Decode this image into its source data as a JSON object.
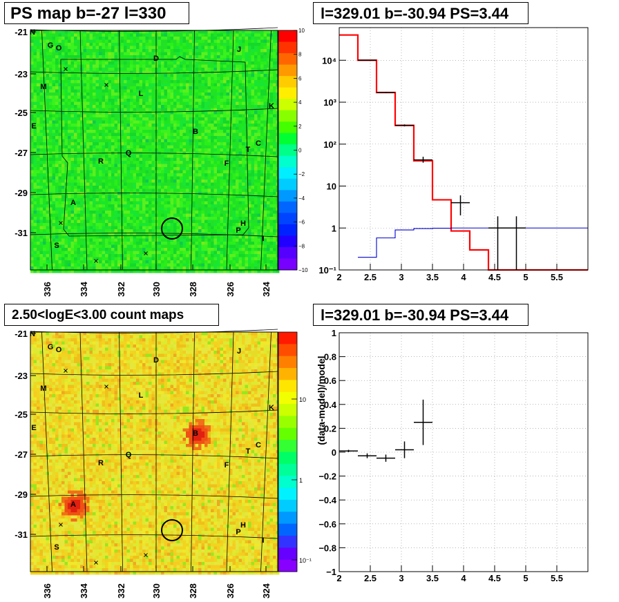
{
  "panels": {
    "tl_title": "PS map b=-27 l=330",
    "tr_title": "l=329.01 b=-30.94 PS=3.44",
    "bl_title": "2.50<logE<3.00 count maps",
    "br_title": "l=329.01 b=-30.94 PS=3.44"
  },
  "colors": {
    "red_hist": "#ff0000",
    "blue_hist": "#0000cc",
    "data": "#000000",
    "map_green": "#22e61e",
    "map_yellow": "#e6e62a"
  },
  "sky_maps": {
    "lat_ticks": [
      "-21",
      "-23",
      "-25",
      "-27",
      "-29",
      "-31"
    ],
    "lon_ticks": [
      "336",
      "334",
      "332",
      "330",
      "328",
      "326",
      "324"
    ],
    "sources": [
      {
        "label": "N"
      },
      {
        "label": "G"
      },
      {
        "label": "O"
      },
      {
        "label": "J"
      },
      {
        "label": "D"
      },
      {
        "label": "M"
      },
      {
        "label": "L"
      },
      {
        "label": "K"
      },
      {
        "label": "E"
      },
      {
        "label": "B"
      },
      {
        "label": "C"
      },
      {
        "label": "T"
      },
      {
        "label": "Q"
      },
      {
        "label": "R"
      },
      {
        "label": "F"
      },
      {
        "label": "A"
      },
      {
        "label": "H"
      },
      {
        "label": "P"
      },
      {
        "label": "I"
      },
      {
        "label": "S"
      }
    ]
  },
  "colorbar_top": {
    "ticks": [
      "10",
      "8",
      "6",
      "4",
      "2",
      "0",
      "−2",
      "−4",
      "−6",
      "−8",
      "−10"
    ]
  },
  "colorbar_bottom": {
    "ticks": [
      "10",
      "1",
      "10⁻¹"
    ]
  },
  "chart_data": [
    {
      "type": "line",
      "title": "l=329.01 b=-30.94 PS=3.44",
      "yscale": "log",
      "xlim": [
        2,
        6
      ],
      "ylim": [
        0.1,
        60000
      ],
      "x_ticks": [
        "2",
        "2.5",
        "3",
        "3.5",
        "4",
        "4.5",
        "5",
        "5.5"
      ],
      "y_ticks": [
        "10⁻¹",
        "1",
        "10",
        "10²",
        "10³",
        "10⁴"
      ],
      "series": [
        {
          "kind": "step",
          "color": "red",
          "edges": [
            2,
            2.3,
            2.6,
            2.9,
            3.2,
            3.5,
            3.8,
            4.1,
            4.4,
            4.7,
            5.0,
            5.3,
            5.6,
            6.0
          ],
          "values": [
            40000,
            10000,
            1700,
            280,
            40,
            4.7,
            0.85,
            0.3,
            0.1,
            0.1,
            0.1,
            0.1,
            0.1
          ]
        },
        {
          "kind": "step",
          "color": "blue",
          "edges": [
            2.3,
            2.6,
            2.9,
            3.2,
            3.5,
            3.8,
            4.1,
            4.4,
            4.7,
            5.0,
            5.3,
            5.6,
            6.0
          ],
          "values": [
            0.2,
            0.58,
            0.9,
            0.97,
            0.99,
            1.0,
            1.0,
            1.0,
            1.0,
            1.0,
            1.0,
            1.0
          ]
        },
        {
          "kind": "points",
          "color": "black",
          "points": [
            {
              "x": 2.45,
              "y": 10000,
              "xerr": 0.15,
              "ylo": 9800,
              "yhi": 10200
            },
            {
              "x": 2.75,
              "y": 1700,
              "xerr": 0.15,
              "ylo": 1650,
              "yhi": 1750
            },
            {
              "x": 3.05,
              "y": 280,
              "xerr": 0.15,
              "ylo": 265,
              "yhi": 295
            },
            {
              "x": 3.35,
              "y": 42,
              "xerr": 0.15,
              "ylo": 36,
              "yhi": 50
            },
            {
              "x": 3.95,
              "y": 4.0,
              "xerr": 0.15,
              "ylo": 2.0,
              "yhi": 6.0
            },
            {
              "x": 4.55,
              "y": 1.0,
              "xerr": 0.15,
              "ylo": 0.1,
              "yhi": 1.9
            },
            {
              "x": 4.85,
              "y": 1.0,
              "xerr": 0.15,
              "ylo": 0.1,
              "yhi": 1.9
            }
          ]
        }
      ]
    },
    {
      "type": "scatter",
      "title": "l=329.01 b=-30.94 PS=3.44",
      "ylabel": "(data-model)/model",
      "xlim": [
        2,
        6
      ],
      "ylim": [
        -1,
        1
      ],
      "x_ticks": [
        "2",
        "2.5",
        "3",
        "3.5",
        "4",
        "4.5",
        "5",
        "5.5"
      ],
      "y_ticks": [
        "−1",
        "−0.8",
        "−0.6",
        "−0.4",
        "−0.2",
        "0",
        "0.2",
        "0.4",
        "0.6",
        "0.8",
        "1"
      ],
      "points": [
        {
          "x": 2.15,
          "y": 0.01,
          "xerr": 0.15,
          "yerr": 0.01
        },
        {
          "x": 2.45,
          "y": -0.03,
          "xerr": 0.15,
          "yerr": 0.02
        },
        {
          "x": 2.75,
          "y": -0.05,
          "xerr": 0.15,
          "yerr": 0.03
        },
        {
          "x": 3.05,
          "y": 0.02,
          "xerr": 0.15,
          "yerr": 0.07
        },
        {
          "x": 3.35,
          "y": 0.25,
          "xerr": 0.15,
          "yerr": 0.19
        }
      ]
    }
  ]
}
